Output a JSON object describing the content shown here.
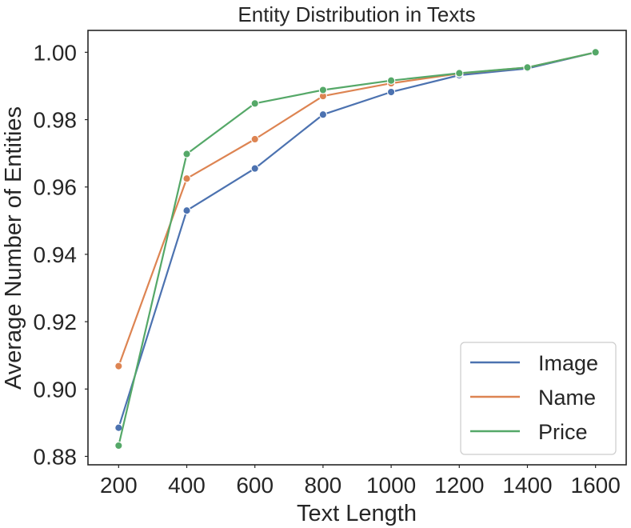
{
  "chart_data": {
    "type": "line",
    "title": "Entity Distribution in Texts",
    "xlabel": "Text Length",
    "ylabel": "Average Number of Entities",
    "x": [
      200,
      400,
      600,
      800,
      1000,
      1200,
      1400,
      1600
    ],
    "xticks": [
      "200",
      "400",
      "600",
      "800",
      "1000",
      "1200",
      "1400",
      "1600"
    ],
    "yticks": [
      "0.88",
      "0.90",
      "0.92",
      "0.94",
      "0.96",
      "0.98",
      "1.00"
    ],
    "xlim": [
      110,
      1690
    ],
    "ylim": [
      0.8775,
      1.0065
    ],
    "grid": false,
    "legend_position": "bottom-right",
    "series": [
      {
        "name": "Image",
        "color": "#4c72b0",
        "values": [
          0.8885,
          0.953,
          0.9655,
          0.9815,
          0.9882,
          0.9932,
          0.9952,
          1.0
        ]
      },
      {
        "name": "Name",
        "color": "#dd8452",
        "values": [
          0.9068,
          0.9625,
          0.9742,
          0.987,
          0.9908,
          0.9937,
          0.9955,
          1.0
        ]
      },
      {
        "name": "Price",
        "color": "#55a868",
        "values": [
          0.8832,
          0.9698,
          0.9848,
          0.9888,
          0.9916,
          0.9938,
          0.9955,
          1.0
        ]
      }
    ]
  }
}
